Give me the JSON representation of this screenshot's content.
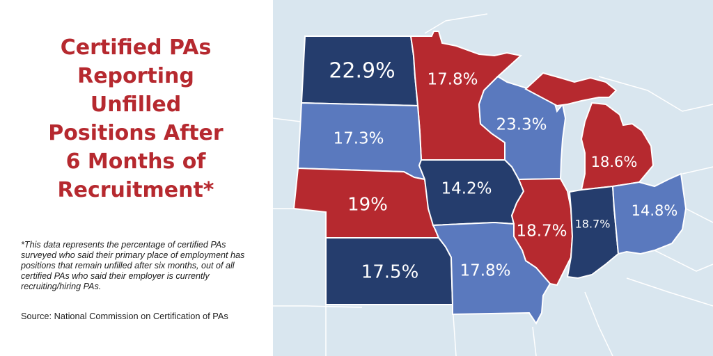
{
  "title_lines": [
    "Certified PAs",
    "Reporting",
    "Unfilled",
    "Positions After",
    "6 Months of",
    "Recruitment*"
  ],
  "footnote": "*This data represents the percentage of certified PAs surveyed who said their primary place of employment has positions that remain unfilled after six months, out of all certified PAs who said their employer is currently recruiting/hiring PAs.",
  "source": "Source: National Commission on Certification of PAs",
  "colors": {
    "red": "#b6292f",
    "dark_blue": "#253d6d",
    "light_blue": "#5a79be",
    "background_states": "#d9e6ef",
    "border": "#ffffff",
    "title": "#b6292f"
  },
  "states": [
    {
      "state": "North Dakota",
      "value": "22.9%",
      "color": "dark_blue"
    },
    {
      "state": "Minnesota",
      "value": "17.8%",
      "color": "red"
    },
    {
      "state": "South Dakota",
      "value": "17.3%",
      "color": "light_blue"
    },
    {
      "state": "Wisconsin",
      "value": "23.3%",
      "color": "light_blue"
    },
    {
      "state": "Michigan",
      "value": "18.6%",
      "color": "red"
    },
    {
      "state": "Nebraska",
      "value": "19%",
      "color": "red"
    },
    {
      "state": "Iowa",
      "value": "14.2%",
      "color": "dark_blue"
    },
    {
      "state": "Illinois",
      "value": "18.7%",
      "color": "red"
    },
    {
      "state": "Indiana",
      "value": "18.7%",
      "color": "dark_blue"
    },
    {
      "state": "Ohio",
      "value": "14.8%",
      "color": "light_blue"
    },
    {
      "state": "Kansas",
      "value": "17.5%",
      "color": "dark_blue"
    },
    {
      "state": "Missouri",
      "value": "17.8%",
      "color": "light_blue"
    }
  ]
}
